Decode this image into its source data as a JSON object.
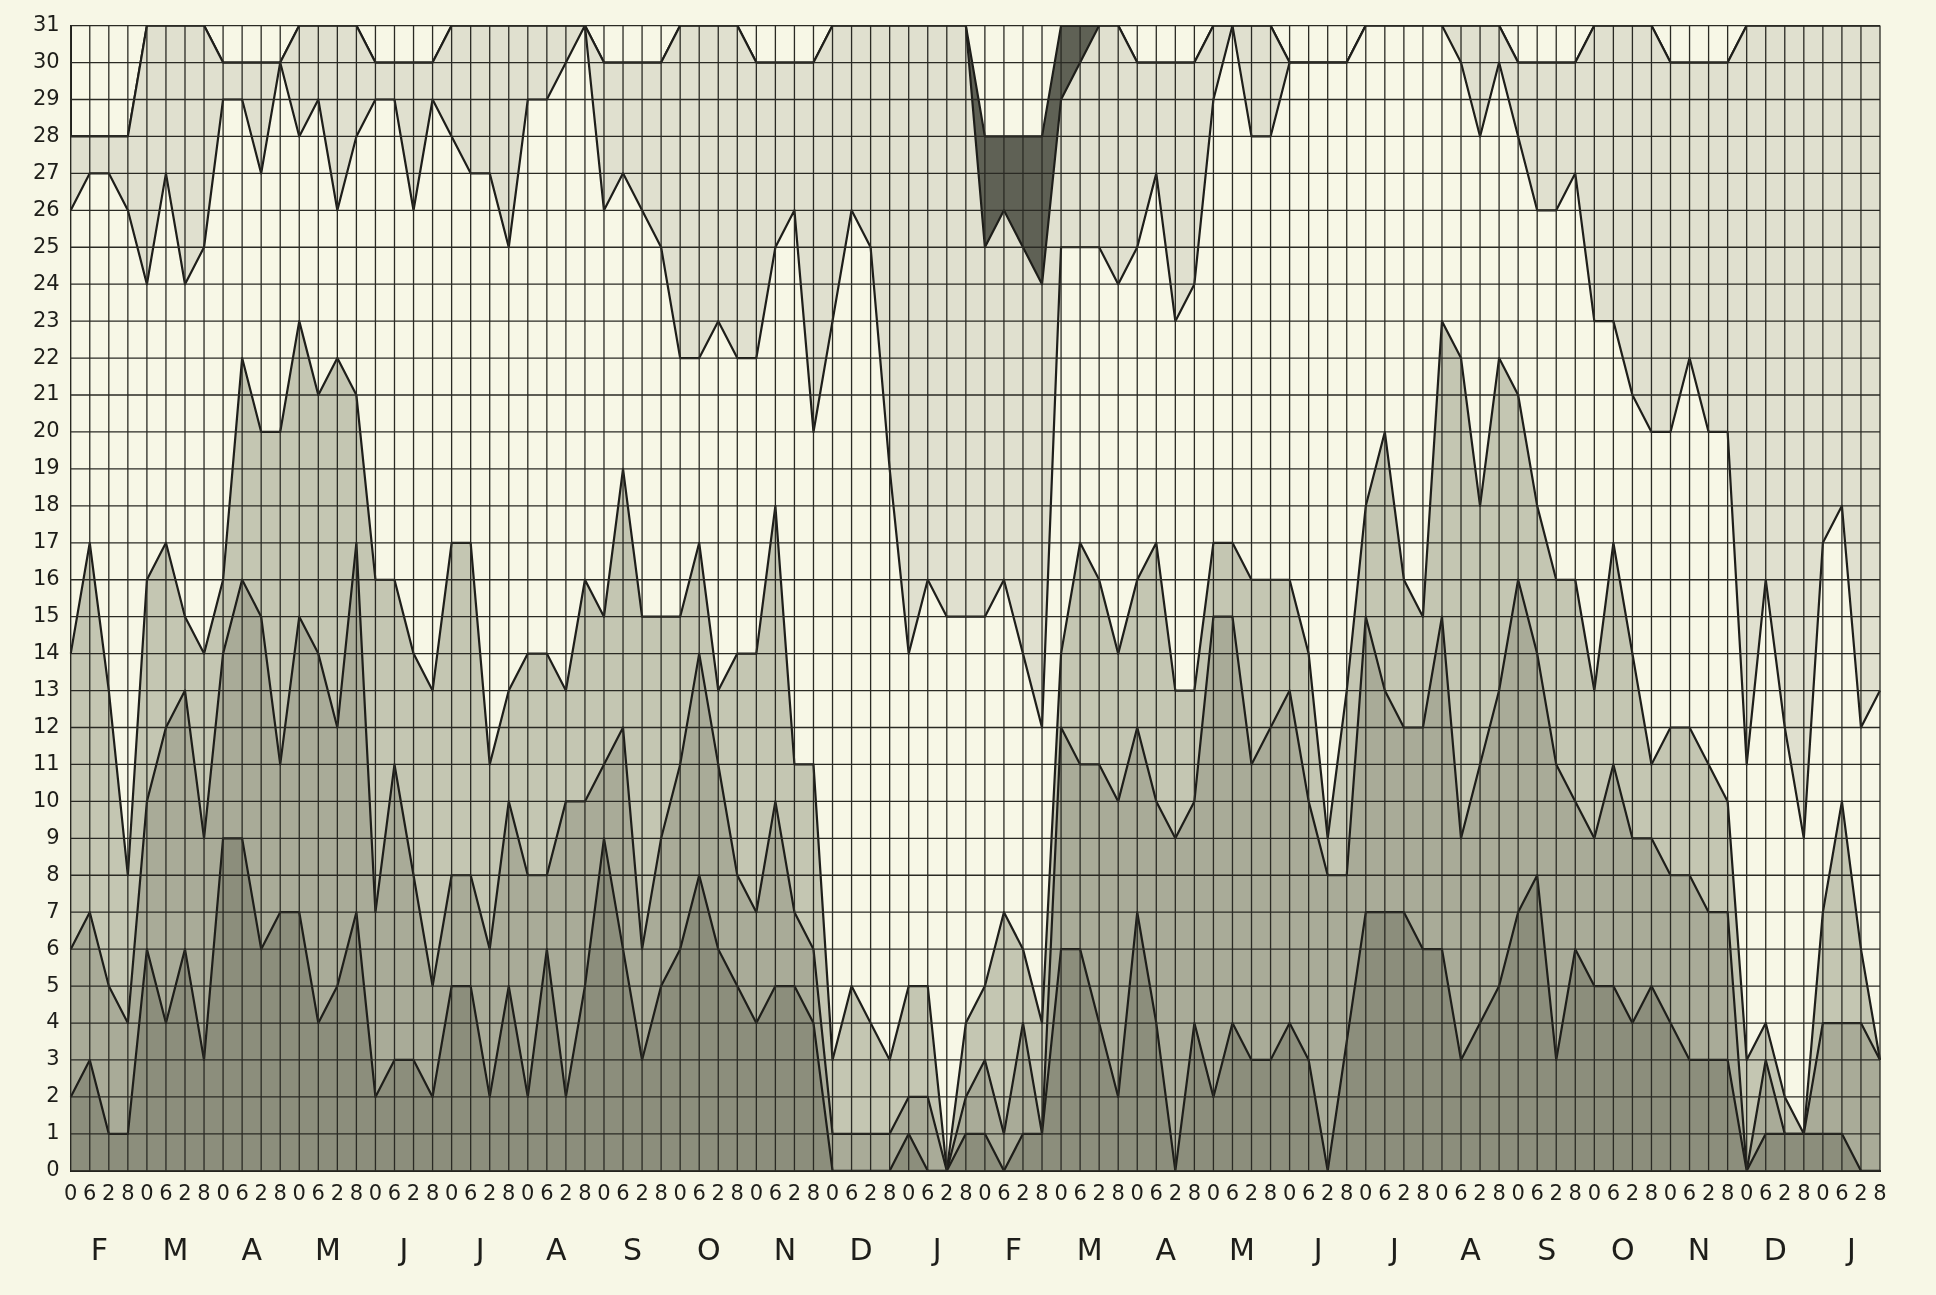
{
  "chart_data": {
    "type": "area",
    "categories": [
      "0",
      "6",
      "2",
      "8",
      "0",
      "6",
      "2",
      "8",
      "0",
      "6",
      "2",
      "8",
      "0",
      "6",
      "2",
      "8",
      "0",
      "6",
      "2",
      "8",
      "0",
      "6",
      "2",
      "8",
      "0",
      "6",
      "2",
      "8",
      "0",
      "6",
      "2",
      "8",
      "0",
      "6",
      "2",
      "8",
      "0",
      "6",
      "2",
      "8",
      "0",
      "6",
      "2",
      "8",
      "0",
      "6",
      "2",
      "8",
      "0",
      "6",
      "2",
      "8",
      "0",
      "6",
      "2",
      "8",
      "0",
      "6",
      "2",
      "8",
      "0",
      "6",
      "2",
      "8",
      "0",
      "6",
      "2",
      "8",
      "0",
      "6",
      "2",
      "8",
      "0",
      "6",
      "2",
      "8",
      "0",
      "6",
      "2",
      "8",
      "0",
      "6",
      "2",
      "8",
      "0",
      "6",
      "2",
      "8",
      "0",
      "6",
      "2",
      "8",
      "0",
      "6",
      "2",
      "8"
    ],
    "series": [
      {
        "color": "#8c8e7c",
        "values": [
          2,
          3,
          1,
          1,
          6,
          4,
          6,
          3,
          9,
          9,
          6,
          7,
          7,
          4,
          5,
          7,
          2,
          3,
          3,
          2,
          5,
          5,
          2,
          5,
          2,
          6,
          2,
          5,
          9,
          6,
          3,
          5,
          6,
          8,
          6,
          5,
          4,
          5,
          5,
          4,
          0,
          0,
          0,
          0,
          1,
          0,
          0,
          1,
          1,
          0,
          1,
          1,
          6,
          6,
          4,
          2,
          7,
          4,
          0,
          4,
          2,
          4,
          3,
          3,
          4,
          3,
          0,
          3.5,
          7,
          7,
          7,
          6,
          6,
          3,
          4,
          5,
          7,
          8,
          3,
          6,
          5,
          5,
          4,
          5,
          4,
          3,
          3,
          3,
          0,
          1,
          1,
          1,
          1,
          1,
          0,
          0
        ]
      },
      {
        "color": "#a9ab98",
        "values": [
          6,
          7,
          5,
          4,
          10,
          12,
          13,
          9,
          14,
          16,
          15,
          11,
          15,
          14,
          12,
          17,
          7,
          11,
          8,
          5,
          8,
          8,
          6,
          10,
          8,
          8,
          10,
          10,
          11,
          12,
          6,
          9,
          11,
          14,
          11,
          8,
          7,
          10,
          7,
          6,
          1,
          1,
          1,
          1,
          2,
          2,
          0,
          2,
          3,
          1,
          4,
          1,
          12,
          11,
          11,
          10,
          12,
          10,
          9,
          10,
          15,
          15,
          11,
          12,
          13,
          10,
          8,
          8,
          15,
          13,
          12,
          12,
          15,
          9,
          11,
          13,
          16,
          14,
          11,
          10,
          9,
          11,
          9,
          9,
          8,
          8,
          7,
          7,
          0,
          3,
          1,
          1,
          4,
          4,
          4,
          3
        ]
      },
      {
        "color": "#c4c6b2",
        "values": [
          14,
          17,
          13,
          8,
          16,
          17,
          15,
          14,
          16,
          22,
          20,
          20,
          23,
          21,
          22,
          21,
          16,
          16,
          14,
          13,
          17,
          17,
          11,
          13,
          14,
          14,
          13,
          16,
          15,
          19,
          15,
          15,
          15,
          17,
          13,
          14,
          14,
          18,
          11,
          11,
          3,
          5,
          4,
          3,
          5,
          5,
          0,
          4,
          5,
          7,
          6,
          4,
          14,
          17,
          16,
          14,
          16,
          17,
          13,
          13,
          17,
          17,
          16,
          16,
          16,
          14,
          9,
          13,
          18,
          20,
          16,
          15,
          23,
          22,
          18,
          22,
          21,
          18,
          16,
          16,
          13,
          17,
          14,
          11,
          12,
          12,
          11,
          10,
          3,
          4,
          2,
          1,
          7,
          10,
          6,
          3
        ]
      },
      {
        "color": "#f7f7e6",
        "values": [
          26,
          27,
          27,
          26,
          24,
          27,
          24,
          25,
          29,
          29,
          27,
          30,
          28,
          29,
          26,
          28,
          29,
          29,
          26,
          29,
          28,
          27,
          27,
          25,
          29,
          29,
          30,
          31,
          26,
          27,
          26,
          25,
          22,
          22,
          23,
          22,
          22,
          25,
          26,
          20,
          23,
          26,
          25,
          19,
          14,
          16,
          15,
          15,
          15,
          16,
          14,
          12,
          25,
          25,
          25,
          24,
          25,
          27,
          23,
          24,
          29,
          31,
          28,
          28,
          30,
          30,
          30,
          30,
          31,
          31,
          31,
          31,
          31,
          30,
          28,
          30,
          28,
          26,
          26,
          27,
          23,
          23,
          21,
          20,
          20,
          22,
          20,
          20,
          11,
          16,
          12,
          9,
          17,
          18,
          12,
          13
        ]
      },
      {
        "color": "#e0e0cf",
        "values": [
          28,
          28,
          28,
          28,
          31,
          31,
          31,
          31,
          30,
          30,
          30,
          30,
          31,
          31,
          31,
          31,
          30,
          30,
          30,
          30,
          31,
          31,
          31,
          31,
          31,
          31,
          31,
          31,
          30,
          30,
          30,
          30,
          31,
          31,
          31,
          31,
          30,
          30,
          30,
          30,
          31,
          31,
          31,
          31,
          31,
          31,
          31,
          31,
          25,
          26,
          25,
          24,
          29,
          30,
          31,
          31,
          30,
          30,
          30,
          30,
          31,
          31,
          31,
          31,
          30,
          30,
          30,
          30,
          31,
          31,
          31,
          31,
          31,
          31,
          31,
          31,
          30,
          30,
          30,
          30,
          31,
          31,
          31,
          31,
          30,
          30,
          30,
          30,
          31,
          31,
          31,
          31,
          31,
          31,
          31,
          31
        ]
      },
      {
        "color": "#5f6155",
        "values": [
          28,
          28,
          28,
          28,
          31,
          31,
          31,
          31,
          30,
          30,
          30,
          30,
          31,
          31,
          31,
          31,
          30,
          30,
          30,
          30,
          31,
          31,
          31,
          31,
          31,
          31,
          31,
          31,
          30,
          30,
          30,
          30,
          31,
          31,
          31,
          31,
          30,
          30,
          30,
          30,
          31,
          31,
          31,
          31,
          31,
          31,
          31,
          31,
          28,
          28,
          28,
          28,
          31,
          31,
          31,
          31,
          30,
          30,
          30,
          30,
          31,
          31,
          31,
          31,
          30,
          30,
          30,
          30,
          31,
          31,
          31,
          31,
          31,
          31,
          31,
          31,
          30,
          30,
          30,
          30,
          31,
          31,
          31,
          31,
          30,
          30,
          30,
          30,
          31,
          31,
          31,
          31,
          31,
          31,
          31,
          31
        ]
      }
    ],
    "ylim": [
      0,
      31
    ],
    "yticks": [
      0,
      1,
      2,
      3,
      4,
      5,
      6,
      7,
      8,
      9,
      10,
      11,
      12,
      13,
      14,
      15,
      16,
      17,
      18,
      19,
      20,
      21,
      22,
      23,
      24,
      25,
      26,
      27,
      28,
      29,
      30,
      31
    ],
    "grid": true,
    "annotations": [
      "F",
      "M",
      "A",
      "M",
      "J",
      "J",
      "A",
      "S",
      "O",
      "N",
      "D",
      "J",
      "F",
      "M",
      "A",
      "M",
      "J",
      "J",
      "A",
      "S",
      "O",
      "N",
      "D",
      "J"
    ]
  }
}
